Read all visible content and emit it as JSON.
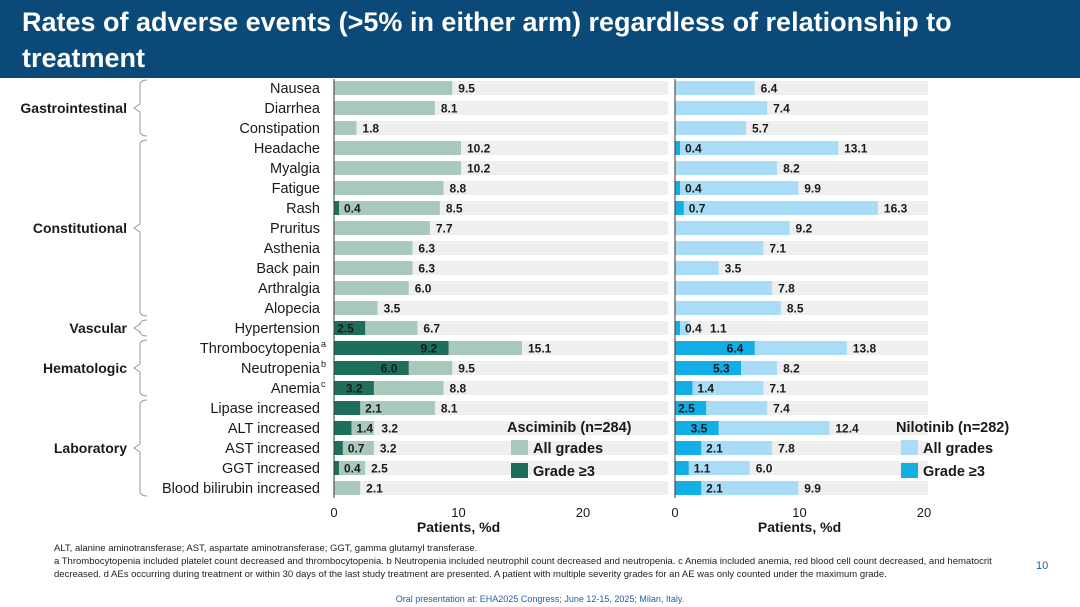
{
  "slide": {
    "title": "Rates of adverse events (>5% in either arm) regardless of relationship to treatment",
    "footnote_abbreviations": "ALT, alanine aminotransferase; AST, aspartate aminotransferase; GGT, gamma glutamyl transferase.",
    "footnote_notes": "a Thrombocytopenia included platelet count decreased and thrombocytopenia. b Neutropenia included neutrophil count decreased and neutropenia. c Anemia included anemia, red blood cell count decreased, and hematocrit decreased. d AEs occurring during treatment or within 30 days of the last study treatment are presented. A patient with multiple severity grades for an AE was only counted under the maximum grade.",
    "page_number": "10",
    "presentation_note": "Oral presentation at: EHA2025 Congress; June 12-15, 2025; Milan, Italy."
  },
  "colors": {
    "title_bg": "#0b4a78",
    "asc_all": "#a9c9bd",
    "asc_g3": "#1e6e5c",
    "nil_all": "#a9dcf7",
    "nil_g3": "#12aee6",
    "row_band": "#efefef"
  },
  "chart_data": {
    "type": "bar",
    "orientation": "horizontal",
    "xlabel": "Patients, %d",
    "xlim": [
      0,
      20
    ],
    "xticks": [
      "0",
      "10",
      "20"
    ],
    "groups": [
      {
        "name": "Gastrointestinal",
        "rows": [
          "Nausea",
          "Diarrhea",
          "Constipation"
        ]
      },
      {
        "name": "Constitutional",
        "rows": [
          "Headache",
          "Myalgia",
          "Fatigue",
          "Rash",
          "Pruritus",
          "Asthenia",
          "Back pain",
          "Arthralgia",
          "Alopecia"
        ]
      },
      {
        "name": "Vascular",
        "rows": [
          "Hypertension"
        ]
      },
      {
        "name": "Hematologic",
        "rows": [
          "Thrombocytopenia",
          "Neutropenia",
          "Anemia"
        ]
      },
      {
        "name": "Laboratory",
        "rows": [
          "Lipase increased",
          "ALT increased",
          "AST increased",
          "GGT increased",
          "Blood bilirubin increased"
        ]
      }
    ],
    "categories": [
      {
        "label": "Nausea",
        "sup": ""
      },
      {
        "label": "Diarrhea",
        "sup": ""
      },
      {
        "label": "Constipation",
        "sup": ""
      },
      {
        "label": "Headache",
        "sup": ""
      },
      {
        "label": "Myalgia",
        "sup": ""
      },
      {
        "label": "Fatigue",
        "sup": ""
      },
      {
        "label": "Rash",
        "sup": ""
      },
      {
        "label": "Pruritus",
        "sup": ""
      },
      {
        "label": "Asthenia",
        "sup": ""
      },
      {
        "label": "Back pain",
        "sup": ""
      },
      {
        "label": "Arthralgia",
        "sup": ""
      },
      {
        "label": "Alopecia",
        "sup": ""
      },
      {
        "label": "Hypertension",
        "sup": ""
      },
      {
        "label": "Thrombocytopenia",
        "sup": "a"
      },
      {
        "label": "Neutropenia",
        "sup": "b"
      },
      {
        "label": "Anemia",
        "sup": "c"
      },
      {
        "label": "Lipase increased",
        "sup": ""
      },
      {
        "label": "ALT increased",
        "sup": ""
      },
      {
        "label": "AST increased",
        "sup": ""
      },
      {
        "label": "GGT increased",
        "sup": ""
      },
      {
        "label": "Blood bilirubin increased",
        "sup": ""
      }
    ],
    "panels": [
      {
        "name": "Asciminib (n=284)",
        "series": [
          {
            "name": "All grades",
            "values": [
              9.5,
              8.1,
              1.8,
              10.2,
              10.2,
              8.8,
              8.5,
              7.7,
              6.3,
              6.3,
              6.0,
              3.5,
              6.7,
              15.1,
              9.5,
              8.8,
              8.1,
              3.2,
              3.2,
              2.5,
              2.1
            ],
            "labels": [
              "9.5",
              "8.1",
              "1.8",
              "10.2",
              "10.2",
              "8.8",
              "8.5",
              "7.7",
              "6.3",
              "6.3",
              "6.0",
              "3.5",
              "6.7",
              "15.1",
              "9.5",
              "8.8",
              "8.1",
              "3.2",
              "3.2",
              "2.5",
              "2.1"
            ]
          },
          {
            "name": "Grade ≥3",
            "values": [
              null,
              null,
              null,
              null,
              null,
              null,
              0.4,
              null,
              null,
              null,
              null,
              null,
              2.5,
              9.2,
              6.0,
              3.2,
              2.1,
              1.4,
              0.7,
              0.4,
              null
            ],
            "labels": [
              null,
              null,
              null,
              null,
              null,
              null,
              "0.4",
              null,
              null,
              null,
              null,
              null,
              "2.5",
              "9.2",
              "6.0",
              "3.2",
              "2.1",
              "1.4",
              "0.7",
              "0.4",
              null
            ]
          }
        ]
      },
      {
        "name": "Nilotinib (n=282)",
        "series": [
          {
            "name": "All grades",
            "values": [
              6.4,
              7.4,
              5.7,
              13.1,
              8.2,
              9.9,
              16.3,
              9.2,
              7.1,
              3.5,
              7.8,
              8.5,
              1.1,
              13.8,
              8.2,
              7.1,
              7.4,
              12.4,
              7.8,
              6.0,
              9.9
            ],
            "labels": [
              "6.4",
              "7.4",
              "5.7",
              "13.1",
              "8.2",
              "9.9",
              "16.3",
              "9.2",
              "7.1",
              "3.5",
              "7.8",
              "8.5",
              "1.1",
              "13.8",
              "8.2",
              "7.1",
              "7.4",
              "12.4",
              "7.8",
              "6.0",
              "9.9"
            ]
          },
          {
            "name": "Grade ≥3",
            "values": [
              null,
              null,
              null,
              0.4,
              null,
              0.4,
              0.7,
              null,
              null,
              null,
              null,
              null,
              0.4,
              6.4,
              5.3,
              1.4,
              2.5,
              3.5,
              2.1,
              1.1,
              2.1
            ],
            "labels": [
              null,
              null,
              null,
              "0.4",
              null,
              "0.4",
              "0.7",
              null,
              null,
              null,
              null,
              null,
              "0.4",
              "6.4",
              "5.3",
              "1.4",
              "2.5",
              "3.5",
              "2.1",
              "1.1",
              "2.1"
            ]
          }
        ]
      }
    ]
  }
}
